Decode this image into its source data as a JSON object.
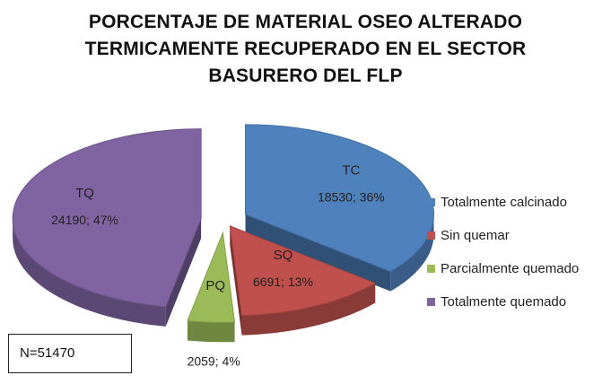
{
  "chart_data": {
    "type": "pie",
    "title_lines": [
      "PORCENTAJE DE MATERIAL OSEO  ALTERADO",
      "TERMICAMENTE RECUPERADO EN EL SECTOR",
      "BASURERO DEL FLP"
    ],
    "slices": [
      {
        "code": "TC",
        "label": "Totalmente  calcinado",
        "value": 18530,
        "percent": 36,
        "data_label": "18530; 36%",
        "color": "#4F81BD"
      },
      {
        "code": "SQ",
        "label": "Sin quemar",
        "value": 6691,
        "percent": 13,
        "data_label": "6691; 13%",
        "color": "#C0504D"
      },
      {
        "code": "PQ",
        "label": "Parcialmente quemado",
        "value": 2059,
        "percent": 4,
        "data_label": "2059; 4%",
        "color": "#9BBB59"
      },
      {
        "code": "TQ",
        "label": "Totalmente quemado",
        "value": 24190,
        "percent": 47,
        "data_label": "24190; 47%",
        "color": "#8064A2"
      }
    ],
    "legend_position": "right",
    "style": "3d-exploded"
  },
  "note": "N=51470"
}
